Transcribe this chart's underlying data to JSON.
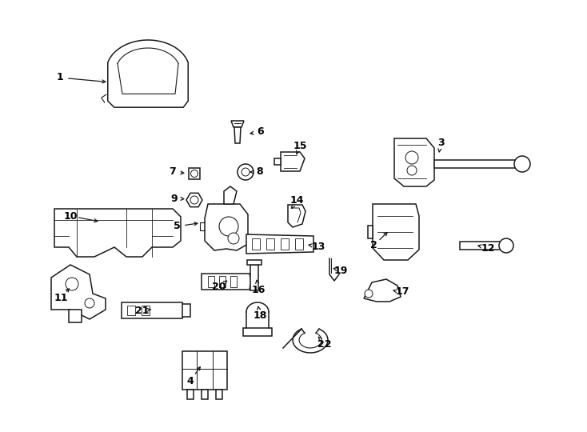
{
  "background_color": "#ffffff",
  "line_color": "#1a1a1a",
  "fig_width": 7.34,
  "fig_height": 5.4,
  "dpi": 100,
  "label_configs": {
    "1": [
      75,
      97,
      140,
      103
    ],
    "2": [
      467,
      307,
      490,
      285
    ],
    "3": [
      551,
      178,
      548,
      198
    ],
    "4": [
      238,
      476,
      255,
      452
    ],
    "5": [
      221,
      283,
      255,
      278
    ],
    "6": [
      326,
      165,
      305,
      168
    ],
    "7": [
      216,
      215,
      238,
      217
    ],
    "8": [
      325,
      215,
      305,
      215
    ],
    "9": [
      218,
      248,
      238,
      249
    ],
    "10": [
      88,
      270,
      130,
      278
    ],
    "11": [
      76,
      372,
      92,
      355
    ],
    "12": [
      610,
      310,
      590,
      305
    ],
    "13": [
      398,
      308,
      378,
      305
    ],
    "14": [
      371,
      250,
      362,
      265
    ],
    "15": [
      375,
      182,
      368,
      200
    ],
    "16": [
      323,
      362,
      320,
      345
    ],
    "17": [
      503,
      365,
      484,
      362
    ],
    "18": [
      325,
      395,
      322,
      378
    ],
    "19": [
      426,
      338,
      412,
      334
    ],
    "20": [
      274,
      358,
      288,
      348
    ],
    "21": [
      178,
      388,
      196,
      386
    ],
    "22": [
      406,
      430,
      393,
      415
    ]
  }
}
